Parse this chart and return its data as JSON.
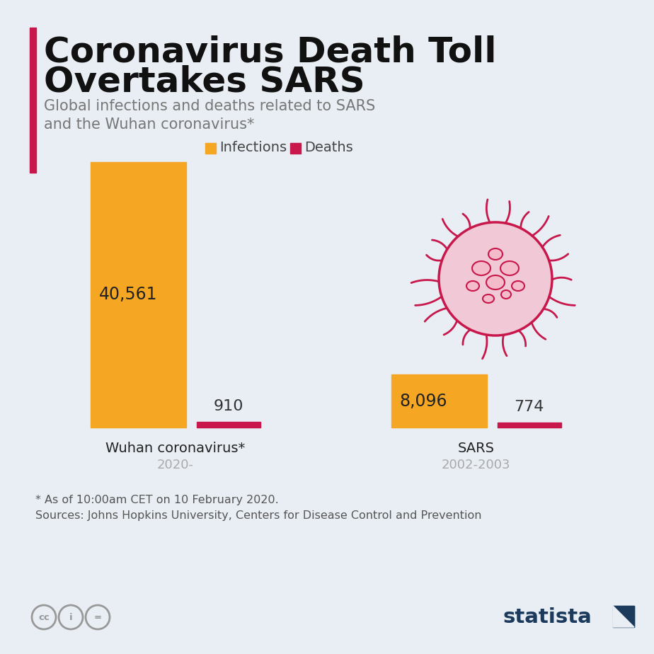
{
  "title_line1": "Coronavirus Death Toll",
  "title_line2": "Overtakes SARS",
  "subtitle_line1": "Global infections and deaths related to SARS",
  "subtitle_line2": "and the Wuhan coronavirus*",
  "legend_infections": "Infections",
  "legend_deaths": "Deaths",
  "groups": [
    "Wuhan coronavirus*",
    "SARS"
  ],
  "group_years": [
    "2020-",
    "2002-2003"
  ],
  "infections": [
    40561,
    8096
  ],
  "deaths": [
    910,
    774
  ],
  "infection_labels": [
    "40,561",
    "8,096"
  ],
  "death_labels": [
    "910",
    "774"
  ],
  "infection_color": "#F5A623",
  "death_color": "#C8174B",
  "background_color": "#E8EEF4",
  "title_color": "#111111",
  "subtitle_color": "#777777",
  "label_color": "#222222",
  "year_color": "#aaaaaa",
  "group_label_color": "#222222",
  "footnote_line1": "* As of 10:00am CET on 10 February 2020.",
  "footnote_line2": "Sources: Johns Hopkins University, Centers for Disease Control and Prevention",
  "accent_color": "#C8174B",
  "statista_color": "#1B3A5C"
}
